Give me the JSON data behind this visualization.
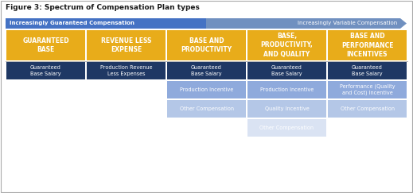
{
  "title": "Figure 3: Spectrum of Compensation Plan types",
  "arrow_label_left": "Increasingly Guaranteed Compensation",
  "arrow_label_right": "Increasingly Variable Compensation",
  "arrow_color_left": "#4472C4",
  "arrow_color_right": "#7F9EC8",
  "gold_color": "#E8AC1A",
  "dark_blue_color": "#1F3864",
  "mid_blue_color": "#4472C4",
  "light_blue_color": "#8FAADC",
  "lighter_blue_color": "#B4C7E7",
  "lightest_blue_color": "#DAE3F3",
  "bg_color": "#FFFFFF",
  "fig_w": 5.19,
  "fig_h": 2.43,
  "columns": [
    {
      "header": "GUARANTEED\nBASE",
      "rows": [
        "Guaranteed\nBase Salary",
        null,
        null,
        null
      ]
    },
    {
      "header": "REVENUE LESS\nEXPENSE",
      "rows": [
        "Production Revenue\nLess Expenses",
        null,
        null,
        null
      ]
    },
    {
      "header": "BASE AND\nPRODUCTIVITY",
      "rows": [
        "Guaranteed\nBase Salary",
        "Production Incentive",
        "Other Compensation",
        null
      ]
    },
    {
      "header": "BASE,\nPRODUCTIVITY,\nAND QUALITY",
      "rows": [
        "Guaranteed\nBase Salary",
        "Production Incentive",
        "Quality Incentive",
        "Other Compensation"
      ]
    },
    {
      "header": "BASE AND\nPERFORMANCE\nINCENTIVES",
      "rows": [
        "Guaranteed\nBase Salary",
        "Performance (Quality\nand Cost) Incentive",
        "Other Compensation",
        null
      ]
    }
  ]
}
